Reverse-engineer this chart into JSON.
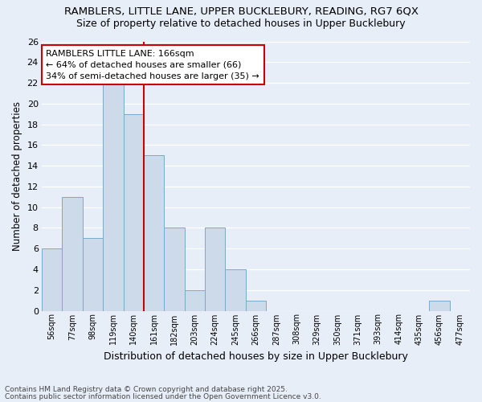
{
  "title_line1": "RAMBLERS, LITTLE LANE, UPPER BUCKLEBURY, READING, RG7 6QX",
  "title_line2": "Size of property relative to detached houses in Upper Bucklebury",
  "xlabel": "Distribution of detached houses by size in Upper Bucklebury",
  "ylabel": "Number of detached properties",
  "footnote1": "Contains HM Land Registry data © Crown copyright and database right 2025.",
  "footnote2": "Contains public sector information licensed under the Open Government Licence v3.0.",
  "bar_labels": [
    "56sqm",
    "77sqm",
    "98sqm",
    "119sqm",
    "140sqm",
    "161sqm",
    "182sqm",
    "203sqm",
    "224sqm",
    "245sqm",
    "266sqm",
    "287sqm",
    "308sqm",
    "329sqm",
    "350sqm",
    "371sqm",
    "393sqm",
    "414sqm",
    "435sqm",
    "456sqm",
    "477sqm"
  ],
  "bar_values": [
    6,
    11,
    7,
    22,
    19,
    15,
    8,
    2,
    8,
    4,
    1,
    0,
    0,
    0,
    0,
    0,
    0,
    0,
    0,
    1,
    0
  ],
  "bar_color": "#ccdaea",
  "bar_edge_color": "#7aaac8",
  "figure_bg_color": "#e8eef8",
  "plot_bg_color": "#e8eef8",
  "grid_color": "#ffffff",
  "annotation_box_text": "RAMBLERS LITTLE LANE: 166sqm\n← 64% of detached houses are smaller (66)\n34% of semi-detached houses are larger (35) →",
  "annotation_box_facecolor": "#ffffff",
  "annotation_box_edgecolor": "#cc0000",
  "vline_color": "#cc0000",
  "vline_index": 5,
  "ylim": [
    0,
    26
  ],
  "yticks": [
    0,
    2,
    4,
    6,
    8,
    10,
    12,
    14,
    16,
    18,
    20,
    22,
    24,
    26
  ]
}
